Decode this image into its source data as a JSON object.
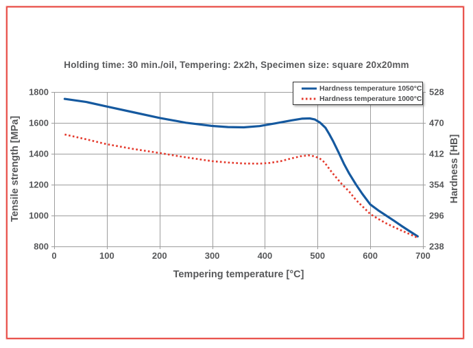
{
  "colors": {
    "accent_blue": "#15599f",
    "accent_red": "#e43a2d",
    "frame_border": "#e9544e",
    "grid": "#9c9c9c",
    "text": "#57585a",
    "legend_border": "#2f2f2f"
  },
  "chart_data": {
    "type": "line",
    "title": "Holding time: 30 min./oil, Tempering: 2x2h, Specimen size: square 20x20mm",
    "xlabel": "Tempering temperature [°C]",
    "ylabel_left": "Tensile strength [MPa]",
    "ylabel_right": "Hardness [HB]",
    "xlim": [
      0,
      700
    ],
    "ylim_left": [
      800,
      1800
    ],
    "ylim_right": [
      238,
      528
    ],
    "x_ticks": [
      0,
      100,
      200,
      300,
      400,
      500,
      600,
      700
    ],
    "y_left_ticks": [
      1800,
      1600,
      1400,
      1200,
      1000,
      800
    ],
    "y_right_ticks": [
      528,
      470,
      412,
      354,
      296,
      238
    ],
    "grid": true,
    "legend_position": "top-right",
    "series": [
      {
        "name": "Hardness temperature 1050°C",
        "color": "#15599f",
        "style": "solid",
        "points": [
          [
            20,
            1755
          ],
          [
            60,
            1736
          ],
          [
            100,
            1706
          ],
          [
            150,
            1669
          ],
          [
            200,
            1632
          ],
          [
            250,
            1601
          ],
          [
            300,
            1580
          ],
          [
            330,
            1573
          ],
          [
            360,
            1571
          ],
          [
            390,
            1579
          ],
          [
            420,
            1597
          ],
          [
            450,
            1616
          ],
          [
            470,
            1627
          ],
          [
            485,
            1629
          ],
          [
            495,
            1622
          ],
          [
            505,
            1601
          ],
          [
            515,
            1568
          ],
          [
            522,
            1528
          ],
          [
            530,
            1478
          ],
          [
            540,
            1408
          ],
          [
            550,
            1335
          ],
          [
            560,
            1272
          ],
          [
            573,
            1200
          ],
          [
            585,
            1140
          ],
          [
            600,
            1072
          ],
          [
            615,
            1034
          ],
          [
            630,
            1000
          ],
          [
            645,
            966
          ],
          [
            660,
            931
          ],
          [
            675,
            898
          ],
          [
            690,
            865
          ]
        ]
      },
      {
        "name": "Hardness temperature 1000°C",
        "color": "#e43a2d",
        "style": "dotted",
        "points": [
          [
            20,
            1525
          ],
          [
            60,
            1494
          ],
          [
            100,
            1462
          ],
          [
            150,
            1431
          ],
          [
            200,
            1405
          ],
          [
            250,
            1377
          ],
          [
            300,
            1352
          ],
          [
            330,
            1343
          ],
          [
            360,
            1337
          ],
          [
            390,
            1336
          ],
          [
            410,
            1341
          ],
          [
            430,
            1352
          ],
          [
            450,
            1370
          ],
          [
            468,
            1384
          ],
          [
            483,
            1390
          ],
          [
            495,
            1383
          ],
          [
            505,
            1367
          ],
          [
            513,
            1345
          ],
          [
            520,
            1312
          ],
          [
            528,
            1276
          ],
          [
            536,
            1243
          ],
          [
            547,
            1200
          ],
          [
            560,
            1155
          ],
          [
            573,
            1100
          ],
          [
            587,
            1053
          ],
          [
            600,
            1010
          ],
          [
            615,
            978
          ],
          [
            630,
            950
          ],
          [
            645,
            925
          ],
          [
            660,
            902
          ],
          [
            675,
            879
          ],
          [
            690,
            856
          ]
        ]
      }
    ]
  }
}
